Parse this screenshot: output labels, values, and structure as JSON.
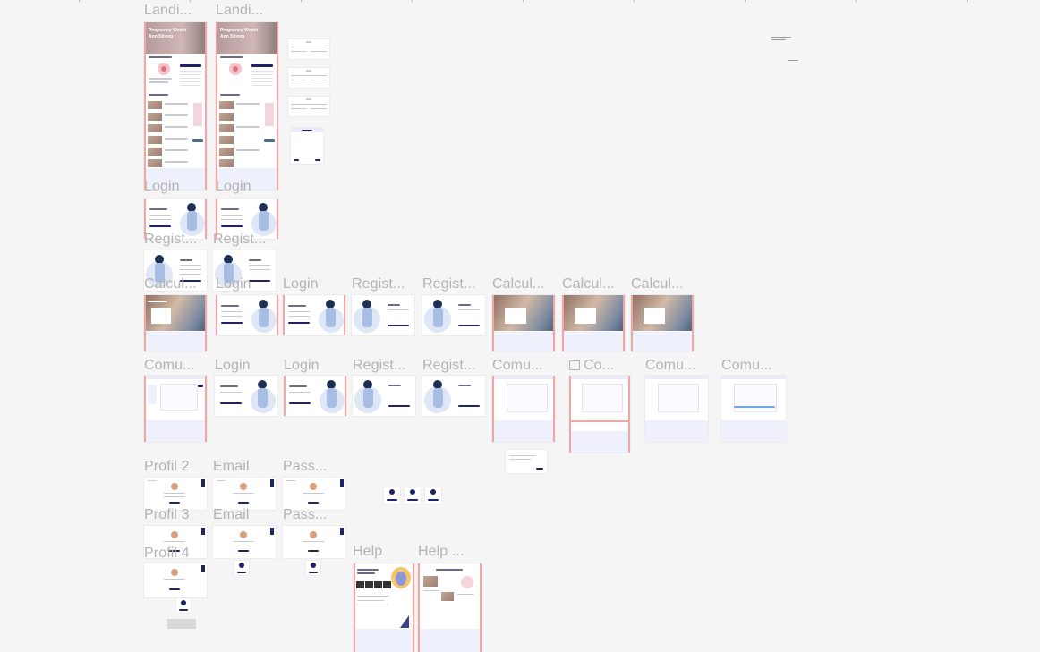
{
  "canvas": {
    "background": "#f5f5f5",
    "accent_navy": "#1f2463",
    "selection_color": "#f2a7a7"
  },
  "frames": {
    "landing_1": "Landi...",
    "landing_2": "Landi...",
    "login_r1_1": "Login",
    "login_r1_2": "Login",
    "register_r1_1": "Regist...",
    "register_r1_2": "Regist...",
    "calc_r2_1": "Calcul...",
    "login_r2_overlap": "Login",
    "login_r2_2": "Login",
    "register_r2_1": "Regist...",
    "register_r2_2": "Regist...",
    "calc_r2_2": "Calcul...",
    "calc_r2_3": "Calcul...",
    "calc_r2_4": "Calcul...",
    "comu_r3_1": "Comu...",
    "login_r3_1": "Login",
    "login_r3_2": "Login",
    "register_r3_1": "Regist...",
    "register_r3_2": "Regist...",
    "comu_r3_2": "Comu...",
    "comu_r3_3": "Co...",
    "comu_r3_4": "Comu...",
    "comu_r3_5": "Comu...",
    "profil_2": "Profil 2",
    "email_1": "Email",
    "pass_1": "Pass...",
    "profil_3": "Profil 3",
    "email_2": "Email",
    "pass_2": "Pass...",
    "profil_4": "Profil 4",
    "help_1": "Help",
    "help_2": "Help ..."
  },
  "frame_texts": {
    "landing_hero_line1": "Pregnancy Womb",
    "landing_hero_line2": "Ann Strong",
    "section_calculator": "Pregnancy Calculator",
    "section_articles": "Pregnancy Articles",
    "login_heading": "Hello, Welcome!",
    "help_heading": "Need Help? Here's Our Guidance!",
    "help2_heading": "Guide Pregnancy Journey"
  },
  "icons": {
    "frame_icon": "frame-icon"
  }
}
